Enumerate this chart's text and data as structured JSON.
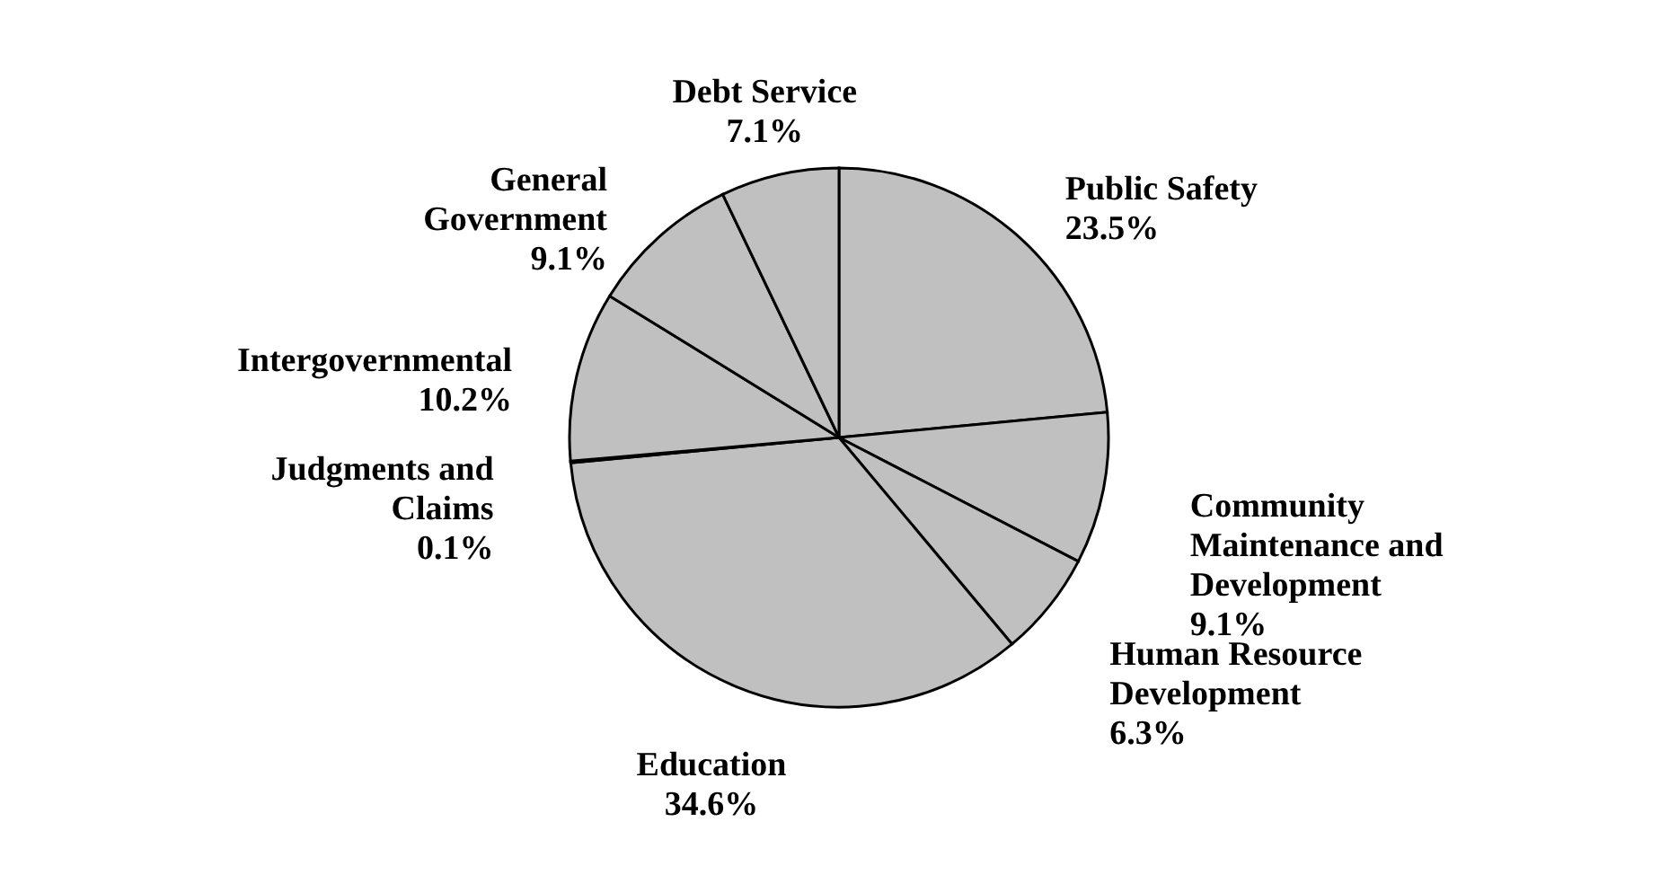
{
  "chart_data": {
    "type": "pie",
    "categories": [
      "Public Safety",
      "Community Maintenance and Development",
      "Human Resource Development",
      "Education",
      "Judgments and Claims",
      "Intergovernmental",
      "General Government",
      "Debt Service"
    ],
    "values": [
      23.5,
      9.1,
      6.3,
      34.6,
      0.1,
      10.2,
      9.1,
      7.1
    ],
    "value_labels": [
      "23.5%",
      "9.1%",
      "6.3%",
      "34.6%",
      "0.1%",
      "10.2%",
      "9.1%",
      "7.1%"
    ],
    "colors": [
      "#c0c0c0",
      "#c0c0c0",
      "#c0c0c0",
      "#c0c0c0",
      "#c0c0c0",
      "#c0c0c0",
      "#c0c0c0",
      "#c0c0c0"
    ]
  }
}
